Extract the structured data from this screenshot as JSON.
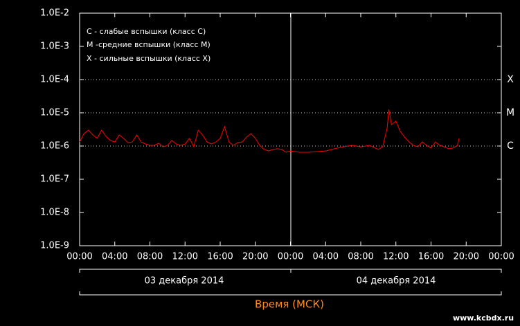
{
  "chart_data": {
    "type": "line",
    "log_y": true,
    "legend_text": [
      "C - слабые вспышки (класс C)",
      "M -средние вспышки (класс M)",
      "X - сильные вспышки (класс X)"
    ],
    "dates": [
      "03 декабря 2014",
      "04 декабря 2014"
    ],
    "x_label": "Время (МСК)",
    "xlim": [
      0,
      48
    ],
    "xticks": [
      {
        "value": 0,
        "label": "00:00"
      },
      {
        "value": 4,
        "label": "04:00"
      },
      {
        "value": 8,
        "label": "08:00"
      },
      {
        "value": 12,
        "label": "12:00"
      },
      {
        "value": 16,
        "label": "16:00"
      },
      {
        "value": 20,
        "label": "20:00"
      },
      {
        "value": 24,
        "label": "00:00"
      },
      {
        "value": 28,
        "label": "04:00"
      },
      {
        "value": 32,
        "label": "08:00"
      },
      {
        "value": 36,
        "label": "12:00"
      },
      {
        "value": 40,
        "label": "16:00"
      },
      {
        "value": 44,
        "label": "20:00"
      },
      {
        "value": 48,
        "label": "00:00"
      }
    ],
    "ylim": [
      1e-09,
      0.01
    ],
    "yticks": [
      {
        "value": 1e-09,
        "label": "1.0E-9"
      },
      {
        "value": 1e-08,
        "label": "1.0E-8"
      },
      {
        "value": 1e-07,
        "label": "1.0E-7"
      },
      {
        "value": 1e-06,
        "label": "1.0E-6"
      },
      {
        "value": 1e-05,
        "label": "1.0E-5"
      },
      {
        "value": 0.0001,
        "label": "1.0E-4"
      },
      {
        "value": 0.001,
        "label": "1.0E-3"
      },
      {
        "value": 0.01,
        "label": "1.0E-2"
      }
    ],
    "flare_classes": [
      {
        "value": 0.0001,
        "label": "X"
      },
      {
        "value": 1e-05,
        "label": "M"
      },
      {
        "value": 1e-06,
        "label": "C"
      }
    ],
    "series": [
      {
        "color": "#ff0000",
        "x": [
          0,
          0.5,
          1,
          1.5,
          2,
          2.5,
          3,
          3.5,
          4,
          4.5,
          5,
          5.5,
          6,
          6.5,
          7,
          7.5,
          8,
          8.5,
          9,
          9.5,
          10,
          10.5,
          11,
          11.5,
          12,
          12.5,
          13,
          13.5,
          14,
          14.5,
          15,
          15.5,
          16,
          16.5,
          17,
          17.5,
          18,
          18.5,
          19,
          19.5,
          20,
          20.5,
          21,
          21.5,
          22,
          22.5,
          23,
          23.5,
          24,
          25,
          26,
          27,
          28,
          29,
          30,
          31,
          32,
          33,
          34,
          34.5,
          35,
          35.2,
          35.5,
          36,
          36.5,
          37,
          37.5,
          38,
          38.5,
          39,
          39.5,
          40,
          40.5,
          41,
          41.5,
          42,
          42.5,
          43,
          43.2
        ],
        "values": [
          1.33e-06,
          2.37e-06,
          3e-06,
          2.15e-06,
          1.7e-06,
          3e-06,
          1.96e-06,
          1.47e-06,
          1.33e-06,
          2.15e-06,
          1.7e-06,
          1.27e-06,
          1.33e-06,
          2.15e-06,
          1.33e-06,
          1.15e-06,
          1.05e-06,
          1.05e-06,
          1.21e-06,
          9.5e-07,
          1.05e-06,
          1.47e-06,
          1.15e-06,
          1.05e-06,
          1.15e-06,
          1.7e-06,
          9.5e-07,
          3e-06,
          2.15e-06,
          1.33e-06,
          1.15e-06,
          1.33e-06,
          1.7e-06,
          3.83e-06,
          1.33e-06,
          1.05e-06,
          1.27e-06,
          1.33e-06,
          1.87e-06,
          2.37e-06,
          1.7e-06,
          1.05e-06,
          7.9e-07,
          7.1e-07,
          7.9e-07,
          8.3e-07,
          7.9e-07,
          6.5e-07,
          7.1e-07,
          6.5e-07,
          6.5e-07,
          6.8e-07,
          7.1e-07,
          8.3e-07,
          9.5e-07,
          1.05e-06,
          9.5e-07,
          1.05e-06,
          7.9e-07,
          9.5e-07,
          3.48e-06,
          1.27e-05,
          4.4e-06,
          5.6e-06,
          2.74e-06,
          1.87e-06,
          1.33e-06,
          1.05e-06,
          9.5e-07,
          1.33e-06,
          1.05e-06,
          8.7e-07,
          1.33e-06,
          1.05e-06,
          9.5e-07,
          8.3e-07,
          8.7e-07,
          1.05e-06,
          1.7e-06
        ]
      }
    ]
  },
  "watermark": "www.kcbdx.ru"
}
